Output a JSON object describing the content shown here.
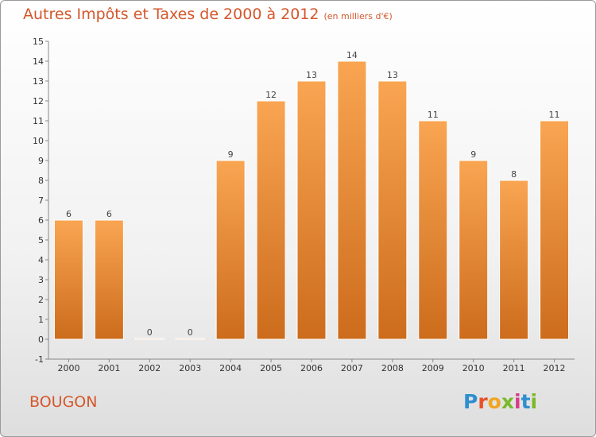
{
  "header": {
    "title": "Autres Impôts et Taxes de 2000 à 2012",
    "subtitle": "(en milliers d'€)"
  },
  "footer": {
    "commune": "BOUGON",
    "logo_letters": [
      "P",
      "r",
      "o",
      "x",
      "i",
      "t",
      "i"
    ],
    "logo_colors": [
      "#2e8fd0",
      "#e8512a",
      "#f0a51e",
      "#7bb82b",
      "#d93a86",
      "#2e8fd0",
      "#7bb82b"
    ]
  },
  "colors": {
    "bar_top": "#f9a552",
    "bar_bottom": "#cc6c1c",
    "title": "#d4572c"
  },
  "chart_data": {
    "type": "bar",
    "categories": [
      "2000",
      "2001",
      "2002",
      "2003",
      "2004",
      "2005",
      "2006",
      "2007",
      "2008",
      "2009",
      "2010",
      "2011",
      "2012"
    ],
    "values": [
      6,
      6,
      0,
      0,
      9,
      12,
      13,
      14,
      13,
      11,
      9,
      8,
      11
    ],
    "ylim": [
      -1,
      15
    ],
    "yticks": [
      -1,
      0,
      1,
      2,
      3,
      4,
      5,
      6,
      7,
      8,
      9,
      10,
      11,
      12,
      13,
      14,
      15
    ],
    "grid": false
  }
}
